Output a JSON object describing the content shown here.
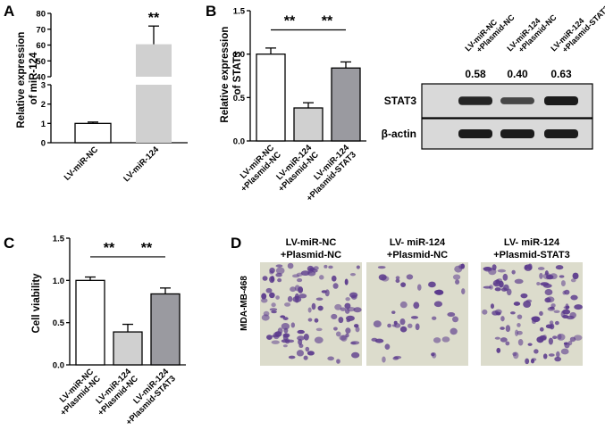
{
  "colors": {
    "white_bar": "#ffffff",
    "light_gray_bar": "#d0d0d0",
    "dark_gray_bar": "#9a9aa0",
    "axis": "#000000",
    "blot_bg": "#d9d9d9",
    "band": "#111111",
    "micro_bg": "#dcdccc",
    "cell": "#5b3a8c"
  },
  "chart_data": [
    {
      "panel": "A",
      "type": "bar",
      "ylabel": "Relative expression of miR-124",
      "categories": [
        "LV-miR-NC",
        "LV-miR-124"
      ],
      "values": [
        1.0,
        60.5
      ],
      "errors": [
        0.07,
        11.5
      ],
      "bar_colors": [
        "#ffffff",
        "#d0d0d0"
      ],
      "axis_broken": true,
      "lower_segment": {
        "ylim": [
          0,
          3
        ],
        "ticks": [
          "0",
          "1",
          "2",
          "3"
        ]
      },
      "upper_segment": {
        "ylim": [
          40,
          80
        ],
        "ticks": [
          "40",
          "50",
          "60",
          "70",
          "80"
        ]
      },
      "significance": [
        {
          "over": 1,
          "label": "**"
        }
      ]
    },
    {
      "panel": "B",
      "type": "bar",
      "ylabel": "Relative expression of STAT3",
      "categories": [
        "LV-miR-NC +Plasmid-NC",
        "LV-miR-124 +Plasmid-NC",
        "LV-miR-124 +Plasmid-STAT3"
      ],
      "values": [
        1.0,
        0.38,
        0.84
      ],
      "errors": [
        0.07,
        0.06,
        0.07
      ],
      "bar_colors": [
        "#ffffff",
        "#d0d0d0",
        "#9a9aa0"
      ],
      "ylim": [
        0,
        1.5
      ],
      "ticks": [
        "0.0",
        "0.5",
        "1.0",
        "1.5"
      ],
      "significance": [
        {
          "from": 0,
          "to": 1,
          "label": "**"
        },
        {
          "from": 1,
          "to": 2,
          "label": "**"
        }
      ]
    },
    {
      "panel": "C",
      "type": "bar",
      "ylabel": "Cell viability",
      "categories": [
        "LV-miR-NC +Plasmid-NC",
        "LV-miR-124 +Plasmid-NC",
        "LV-miR-124 +Plasmid-STAT3"
      ],
      "values": [
        1.0,
        0.39,
        0.84
      ],
      "errors": [
        0.04,
        0.09,
        0.07
      ],
      "bar_colors": [
        "#ffffff",
        "#d0d0d0",
        "#9a9aa0"
      ],
      "ylim": [
        0,
        1.5
      ],
      "ticks": [
        "0.0",
        "0.5",
        "1.0",
        "1.5"
      ],
      "significance": [
        {
          "from": 0,
          "to": 1,
          "label": "**"
        },
        {
          "from": 1,
          "to": 2,
          "label": "**"
        }
      ]
    }
  ],
  "western_blot": {
    "lane_labels": [
      "LV-miR-NC +Plasmid-NC",
      "LV-miR-124 +Plasmid-NC",
      "LV-miR-124 +Plasmid-STAT3"
    ],
    "lane_labels_line1": [
      "LV-miR-NC",
      "LV-miR-124",
      "LV-miR-124"
    ],
    "lane_labels_line2": [
      "+Plasmid-NC",
      "+Plasmid-NC",
      "+Plasmid-STAT3"
    ],
    "values": [
      "0.58",
      "0.40",
      "0.63"
    ],
    "stat3_intensity": [
      0.58,
      0.4,
      0.63
    ],
    "rows": [
      "STAT3",
      "β-actin"
    ]
  },
  "micrographs": {
    "panel": "D",
    "side_label": "MDA-MB-468",
    "columns": [
      {
        "line1": "LV-miR-NC",
        "line2": "+Plasmid-NC"
      },
      {
        "line1": "LV- miR-124",
        "line2": "+Plasmid-NC"
      },
      {
        "line1": "LV- miR-124",
        "line2": "+Plasmid-STAT3"
      }
    ]
  },
  "panel_letters": [
    "A",
    "B",
    "C",
    "D"
  ]
}
